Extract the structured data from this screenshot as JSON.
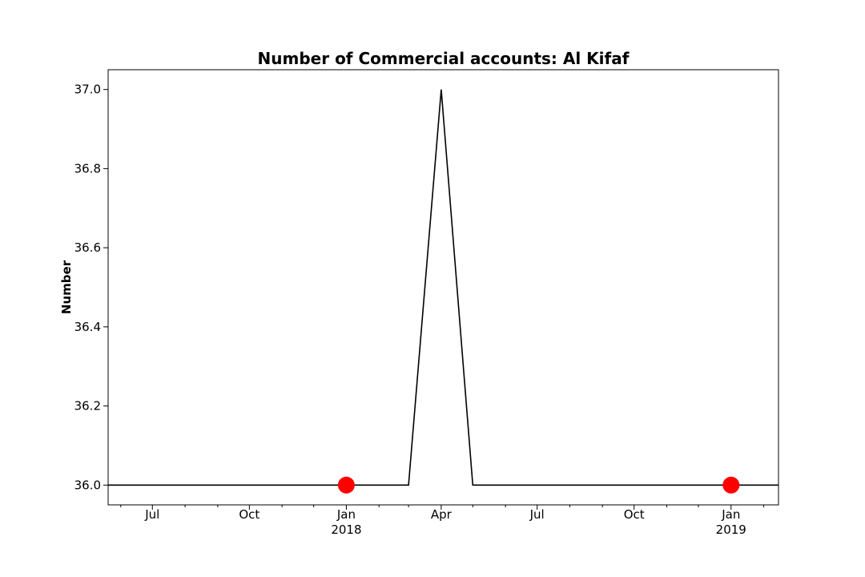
{
  "chart_data": {
    "type": "line",
    "title": "Number of Commercial accounts: Al Kifaf",
    "xlabel": "",
    "ylabel": "Number",
    "x_axis_type": "date",
    "xlim": [
      "2017-05-20",
      "2019-02-15"
    ],
    "ylim": [
      35.95,
      37.05
    ],
    "yticks": [
      {
        "value": 36.0,
        "label": "36.0"
      },
      {
        "value": 36.2,
        "label": "36.2"
      },
      {
        "value": 36.4,
        "label": "36.4"
      },
      {
        "value": 36.6,
        "label": "36.6"
      },
      {
        "value": 36.8,
        "label": "36.8"
      },
      {
        "value": 37.0,
        "label": "37.0"
      }
    ],
    "xticks_major": [
      {
        "date": "2017-07-01",
        "label": "Jul",
        "sublabel": ""
      },
      {
        "date": "2017-10-01",
        "label": "Oct",
        "sublabel": ""
      },
      {
        "date": "2018-01-01",
        "label": "Jan",
        "sublabel": "2018"
      },
      {
        "date": "2018-04-01",
        "label": "Apr",
        "sublabel": ""
      },
      {
        "date": "2018-07-01",
        "label": "Jul",
        "sublabel": ""
      },
      {
        "date": "2018-10-01",
        "label": "Oct",
        "sublabel": ""
      },
      {
        "date": "2019-01-01",
        "label": "Jan",
        "sublabel": "2019"
      }
    ],
    "xticks_minor": [
      "2017-06-01",
      "2017-08-01",
      "2017-09-01",
      "2017-11-01",
      "2017-12-01",
      "2018-02-01",
      "2018-03-01",
      "2018-05-01",
      "2018-06-01",
      "2018-08-01",
      "2018-09-01",
      "2018-11-01",
      "2018-12-01",
      "2019-02-01"
    ],
    "series": [
      {
        "color": "#000000",
        "points": [
          {
            "x": "2017-05-20",
            "y": 36
          },
          {
            "x": "2018-03-01",
            "y": 36
          },
          {
            "x": "2018-04-01",
            "y": 37
          },
          {
            "x": "2018-05-01",
            "y": 36
          },
          {
            "x": "2019-02-15",
            "y": 36
          }
        ]
      }
    ],
    "markers": [
      {
        "x": "2018-01-01",
        "y": 36,
        "color": "#ff0000"
      },
      {
        "x": "2019-01-01",
        "y": 36,
        "color": "#ff0000"
      }
    ],
    "grid": false,
    "legend": "none"
  }
}
